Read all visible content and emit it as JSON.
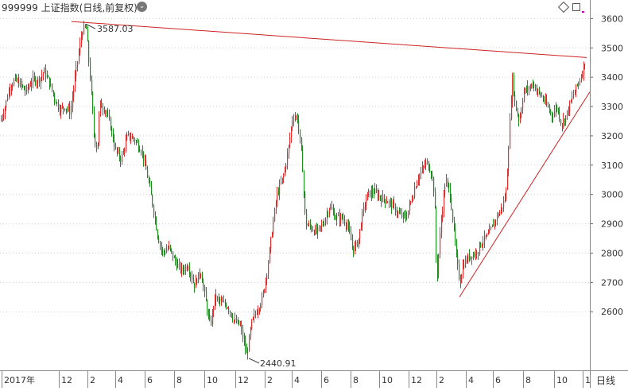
{
  "header": {
    "symbol": "999999",
    "name": "上证指数",
    "mode": "(日线,前复权)",
    "dropdown_glyph": "⌄"
  },
  "period_label": "日线",
  "chart_data": {
    "type": "candlestick",
    "y_axis": {
      "min": 2400,
      "max": 3620,
      "ticks": [
        2600,
        2700,
        2800,
        2900,
        3000,
        3100,
        3200,
        3300,
        3400,
        3500,
        3600
      ],
      "grid": true,
      "position": "right"
    },
    "x_axis": {
      "ticks": [
        "2017年",
        "12",
        "2",
        "4",
        "6",
        "8",
        "10",
        "12",
        "2",
        "4",
        "6",
        "8",
        "10",
        "12",
        "2",
        "4",
        "6",
        "8",
        "10",
        "1"
      ]
    },
    "annotations": [
      {
        "label": "3587.03",
        "value": 3587.03,
        "kind": "high"
      },
      {
        "label": "2440.91",
        "value": 2440.91,
        "kind": "low"
      }
    ],
    "trendlines": [
      {
        "name": "upper-resistance",
        "from_value": 3590,
        "to_value": 3467
      },
      {
        "name": "lower-support",
        "from_value": 2650,
        "to_value": 3350
      }
    ],
    "up_color": "#e03030",
    "down_color": "#1e8c1e",
    "trendline_color": "#cc2222",
    "path_anchors": [
      [
        0,
        3250
      ],
      [
        6,
        3300
      ],
      [
        12,
        3370
      ],
      [
        18,
        3390
      ],
      [
        24,
        3380
      ],
      [
        32,
        3350
      ],
      [
        40,
        3390
      ],
      [
        48,
        3390
      ],
      [
        55,
        3420
      ],
      [
        62,
        3380
      ],
      [
        68,
        3330
      ],
      [
        75,
        3290
      ],
      [
        82,
        3300
      ],
      [
        88,
        3280
      ],
      [
        95,
        3420
      ],
      [
        103,
        3560
      ],
      [
        108,
        3570
      ],
      [
        113,
        3400
      ],
      [
        118,
        3200
      ],
      [
        122,
        3150
      ],
      [
        125,
        3310
      ],
      [
        132,
        3290
      ],
      [
        138,
        3240
      ],
      [
        145,
        3150
      ],
      [
        152,
        3120
      ],
      [
        160,
        3200
      ],
      [
        168,
        3190
      ],
      [
        178,
        3150
      ],
      [
        186,
        3050
      ],
      [
        192,
        2960
      ],
      [
        198,
        2860
      ],
      [
        204,
        2800
      ],
      [
        212,
        2820
      ],
      [
        220,
        2770
      ],
      [
        228,
        2740
      ],
      [
        236,
        2760
      ],
      [
        244,
        2690
      ],
      [
        252,
        2740
      ],
      [
        258,
        2640
      ],
      [
        264,
        2550
      ],
      [
        270,
        2650
      ],
      [
        278,
        2630
      ],
      [
        286,
        2620
      ],
      [
        294,
        2570
      ],
      [
        302,
        2550
      ],
      [
        310,
        2450
      ],
      [
        316,
        2560
      ],
      [
        322,
        2600
      ],
      [
        330,
        2650
      ],
      [
        336,
        2750
      ],
      [
        342,
        2880
      ],
      [
        348,
        3000
      ],
      [
        356,
        3060
      ],
      [
        362,
        3150
      ],
      [
        368,
        3270
      ],
      [
        374,
        3260
      ],
      [
        380,
        3100
      ],
      [
        384,
        2900
      ],
      [
        390,
        2890
      ],
      [
        398,
        2870
      ],
      [
        406,
        2900
      ],
      [
        414,
        2960
      ],
      [
        422,
        2920
      ],
      [
        430,
        2920
      ],
      [
        436,
        2900
      ],
      [
        444,
        2810
      ],
      [
        450,
        2840
      ],
      [
        456,
        2940
      ],
      [
        462,
        3000
      ],
      [
        470,
        3010
      ],
      [
        478,
        2990
      ],
      [
        486,
        2980
      ],
      [
        494,
        2960
      ],
      [
        502,
        2930
      ],
      [
        510,
        2920
      ],
      [
        518,
        2990
      ],
      [
        524,
        3050
      ],
      [
        530,
        3080
      ],
      [
        536,
        3110
      ],
      [
        542,
        3080
      ],
      [
        546,
        3000
      ],
      [
        549,
        2700
      ],
      [
        554,
        2900
      ],
      [
        560,
        3050
      ],
      [
        566,
        3000
      ],
      [
        570,
        2890
      ],
      [
        574,
        2780
      ],
      [
        578,
        2700
      ],
      [
        582,
        2760
      ],
      [
        590,
        2790
      ],
      [
        598,
        2800
      ],
      [
        606,
        2840
      ],
      [
        614,
        2860
      ],
      [
        622,
        2910
      ],
      [
        630,
        2950
      ],
      [
        636,
        3000
      ],
      [
        640,
        3200
      ],
      [
        644,
        3400
      ],
      [
        648,
        3300
      ],
      [
        653,
        3250
      ],
      [
        658,
        3350
      ],
      [
        664,
        3360
      ],
      [
        670,
        3380
      ],
      [
        676,
        3350
      ],
      [
        682,
        3330
      ],
      [
        688,
        3300
      ],
      [
        694,
        3270
      ],
      [
        700,
        3300
      ],
      [
        706,
        3240
      ],
      [
        712,
        3270
      ],
      [
        718,
        3320
      ],
      [
        724,
        3360
      ],
      [
        730,
        3400
      ],
      [
        736,
        3460
      ]
    ]
  }
}
